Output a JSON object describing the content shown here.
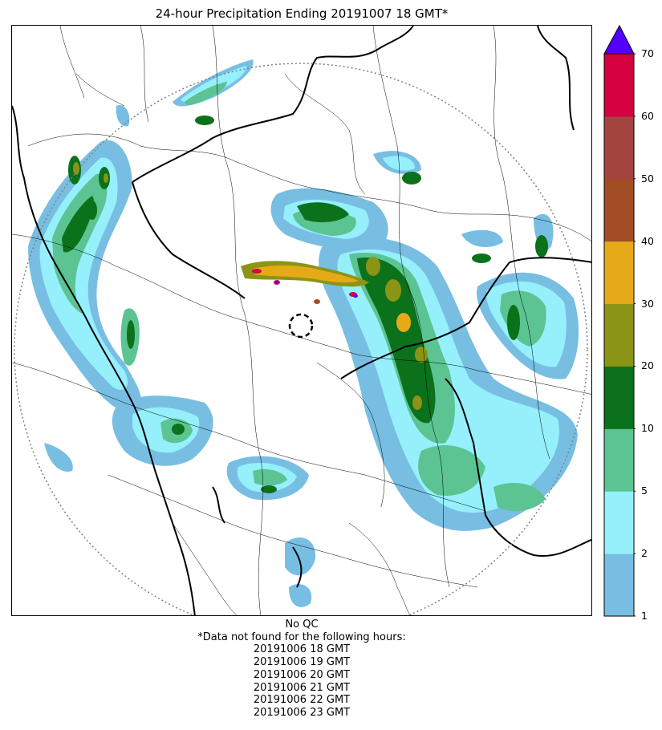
{
  "title": "24-hour Precipitation Ending 20191007 18 GMT*",
  "colorbar": {
    "tick_labels": [
      "1",
      "2",
      "5",
      "10",
      "20",
      "30",
      "40",
      "50",
      "60",
      "70"
    ],
    "colors": [
      "#78bee3",
      "#95f0fc",
      "#5bc492",
      "#0b711b",
      "#8b9414",
      "#e6aa18",
      "#a24d24",
      "#a4443f",
      "#d5003f"
    ],
    "extend_max_color": "#5400ff"
  },
  "notes": {
    "qc": "No QC",
    "missing_header": "*Data not found for the following hours:",
    "missing_hours": [
      "20191006 18 GMT",
      "20191006 19 GMT",
      "20191006 20 GMT",
      "20191006 21 GMT",
      "20191006 22 GMT",
      "20191006 23 GMT"
    ]
  }
}
